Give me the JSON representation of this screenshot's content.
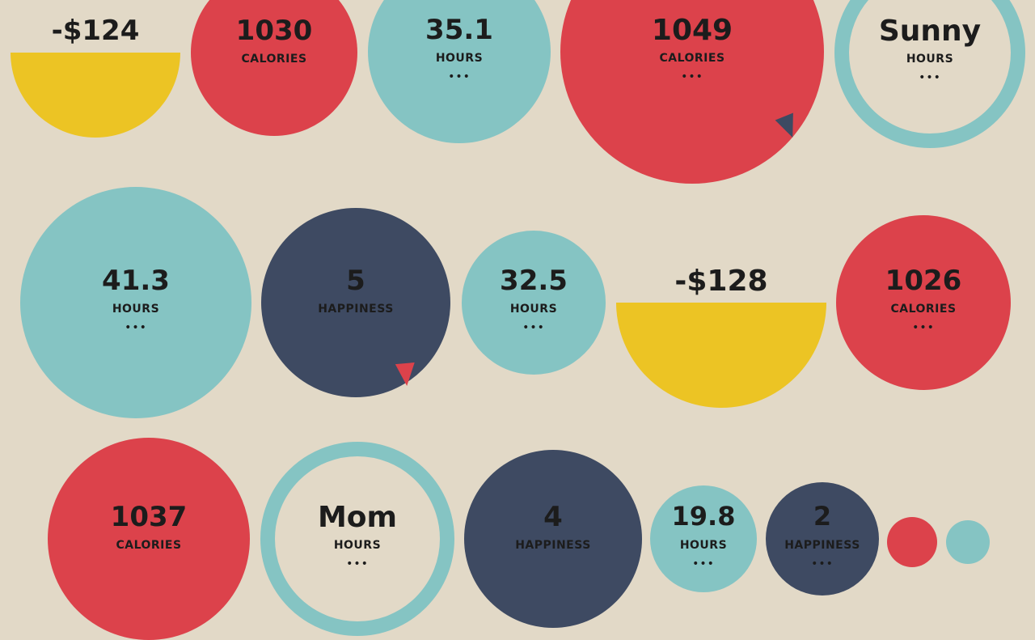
{
  "colors": {
    "background": "#e2d9c7",
    "red": "#dc424b",
    "teal": "#85c4c3",
    "navy": "#3e4a62",
    "yellow": "#ecc424",
    "text": "#1c1c1c"
  },
  "tiles": [
    {
      "kind": "half",
      "color": "yellow",
      "value": "-$124",
      "unit": "",
      "dots": ""
    },
    {
      "kind": "disc",
      "color": "red",
      "value": "1030",
      "unit": "CALORIES",
      "dots": ""
    },
    {
      "kind": "disc",
      "color": "teal",
      "value": "35.1",
      "unit": "HOURS",
      "dots": "•••"
    },
    {
      "kind": "disc",
      "color": "red",
      "value": "1049",
      "unit": "CALORIES",
      "dots": "•••",
      "marker": "navy"
    },
    {
      "kind": "ring",
      "color": "teal",
      "value": "Sunny",
      "unit": "HOURS",
      "dots": "•••"
    },
    {
      "kind": "disc",
      "color": "teal",
      "value": "41.3",
      "unit": "HOURS",
      "dots": "•••"
    },
    {
      "kind": "disc",
      "color": "navy",
      "value": "5",
      "unit": "HAPPINESS",
      "dots": "",
      "marker": "red"
    },
    {
      "kind": "disc",
      "color": "teal",
      "value": "32.5",
      "unit": "HOURS",
      "dots": "•••"
    },
    {
      "kind": "half",
      "color": "yellow",
      "value": "-$128",
      "unit": "",
      "dots": ""
    },
    {
      "kind": "disc",
      "color": "red",
      "value": "1026",
      "unit": "CALORIES",
      "dots": "•••"
    },
    {
      "kind": "disc",
      "color": "red",
      "value": "1037",
      "unit": "CALORIES",
      "dots": ""
    },
    {
      "kind": "ring",
      "color": "teal",
      "value": "Mom",
      "unit": "HOURS",
      "dots": "•••"
    },
    {
      "kind": "disc",
      "color": "navy",
      "value": "4",
      "unit": "HAPPINESS",
      "dots": ""
    },
    {
      "kind": "disc",
      "color": "teal",
      "value": "19.8",
      "unit": "HOURS",
      "dots": "•••"
    },
    {
      "kind": "disc",
      "color": "navy",
      "value": "2",
      "unit": "HAPPINESS",
      "dots": "•••"
    },
    {
      "kind": "disc",
      "color": "red",
      "value": "",
      "unit": "",
      "dots": ""
    },
    {
      "kind": "disc",
      "color": "teal",
      "value": "",
      "unit": "",
      "dots": ""
    }
  ]
}
